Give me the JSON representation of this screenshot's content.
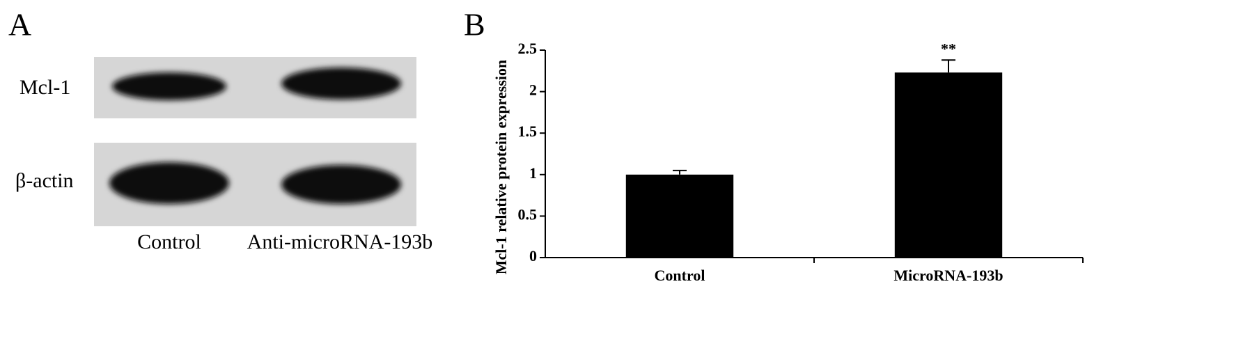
{
  "panel_a": {
    "panel_label": "A",
    "rows": [
      "Mcl-1",
      "β-actin"
    ],
    "lanes": [
      "Control",
      "Anti-microRNA-193b"
    ]
  },
  "chart_data": {
    "type": "bar",
    "panel_label": "B",
    "y_label": "Mcl-1 relative protein expression",
    "categories": [
      "Control",
      "MicroRNA-193b"
    ],
    "values": [
      1.0,
      2.23
    ],
    "errors": [
      0.05,
      0.15
    ],
    "significance": [
      null,
      "**"
    ],
    "color": "#000000",
    "ylim": [
      0,
      2.5
    ],
    "yticks": [
      0,
      0.5,
      1,
      1.5,
      2,
      2.5
    ],
    "grid": false
  }
}
